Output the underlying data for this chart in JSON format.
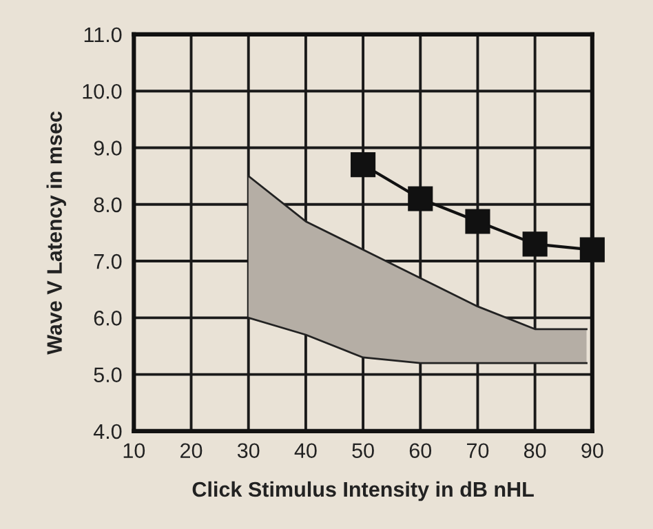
{
  "chart_data": {
    "type": "line",
    "xlabel": "Click Stimulus Intensity in dB nHL",
    "ylabel": "Wave V Latency in msec",
    "xlim": [
      10,
      90
    ],
    "xticks": [
      10,
      20,
      30,
      40,
      50,
      60,
      70,
      80,
      90
    ],
    "ylim": [
      4.0,
      11.0
    ],
    "yticks": [
      {
        "value": 4,
        "label": "4.0"
      },
      {
        "value": 5,
        "label": "5.0"
      },
      {
        "value": 6,
        "label": "6.0"
      },
      {
        "value": 7,
        "label": "7.0"
      },
      {
        "value": 8,
        "label": "8.0"
      },
      {
        "value": 9,
        "label": "9.0"
      },
      {
        "value": 10,
        "label": "10.0"
      },
      {
        "value": 11,
        "label": "11.0"
      }
    ],
    "grid": true,
    "series": [
      {
        "color": "#222222",
        "x": [
          30,
          40,
          50,
          60,
          70,
          80,
          89
        ],
        "values": [
          6.0,
          5.7,
          5.3,
          5.2,
          5.2,
          5.2,
          5.2
        ]
      },
      {
        "color": "#222222",
        "x": [
          30,
          40,
          50,
          60,
          70,
          80,
          89
        ],
        "values": [
          8.5,
          7.7,
          7.2,
          6.7,
          6.2,
          5.8,
          5.8
        ],
        "lower": [
          6.0,
          5.7,
          5.3,
          5.2,
          5.2,
          5.2,
          5.2
        ],
        "upper": [
          8.5,
          7.7,
          7.2,
          6.7,
          6.2,
          5.8,
          5.8
        ]
      },
      {
        "color": "#111111",
        "marker": "square",
        "line_style": "solid",
        "x": [
          50,
          60,
          70,
          80,
          90
        ],
        "values": [
          8.7,
          8.1,
          7.7,
          7.3,
          7.2
        ]
      }
    ]
  }
}
